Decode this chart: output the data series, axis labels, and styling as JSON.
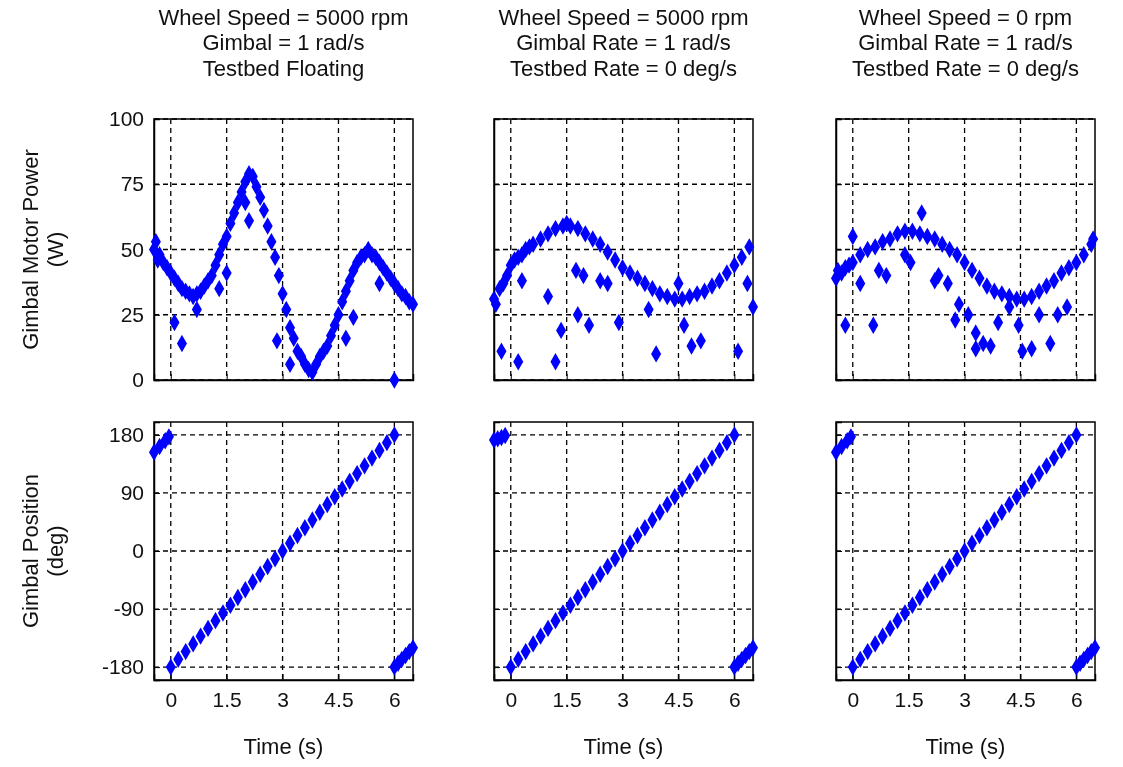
{
  "chart_data": [
    {
      "type": "scatter",
      "title": "Wheel Speed = 5000 rpm\nGimbal = 1 rad/s\nTestbed Floating",
      "ylabel": "Gimbal Motor Power\n(W)",
      "xlim": [
        -0.45,
        6.5
      ],
      "xticks": [
        0,
        1.5,
        3,
        4.5,
        6
      ],
      "ylim": [
        0,
        100
      ],
      "yticks": [
        0,
        25,
        50,
        75,
        100
      ],
      "grid": true,
      "marker": "diamond",
      "tick_labels": "y",
      "color": "#0000ff",
      "x": [
        -0.45,
        -0.4,
        -0.35,
        -0.3,
        -0.2,
        -0.1,
        0,
        0.1,
        0.2,
        0.3,
        0.4,
        0.5,
        0.6,
        0.7,
        0.8,
        0.9,
        1.0,
        1.1,
        1.2,
        1.3,
        1.4,
        1.5,
        1.6,
        1.7,
        1.8,
        1.9,
        2.0,
        2.1,
        2.2,
        2.3,
        2.4,
        2.5,
        2.6,
        2.7,
        2.8,
        2.9,
        3.0,
        3.1,
        3.2,
        3.3,
        3.4,
        3.5,
        3.6,
        3.7,
        3.8,
        3.9,
        4.0,
        4.1,
        4.2,
        4.3,
        4.4,
        4.5,
        4.6,
        4.7,
        4.8,
        4.9,
        5.0,
        5.1,
        5.2,
        5.3,
        5.4,
        5.5,
        5.6,
        5.7,
        5.8,
        5.9,
        6.0,
        6.1,
        6.2,
        6.3,
        6.4,
        6.5,
        0.1,
        0.3,
        0.7,
        1.5,
        2.1,
        2.85,
        3.2,
        4.9,
        5.6,
        4.7,
        6.0,
        2.0,
        1.3
      ],
      "values": [
        50,
        53,
        46,
        48,
        45,
        43,
        41,
        39,
        37,
        35,
        34,
        33,
        32,
        33,
        34,
        36,
        38,
        40,
        44,
        48,
        52,
        55,
        60,
        64,
        68,
        72,
        76,
        79,
        78,
        74,
        70,
        65,
        59,
        53,
        47,
        40,
        33,
        27,
        20,
        16,
        11,
        9,
        6,
        4,
        3,
        6,
        9,
        11,
        13,
        17,
        21,
        25,
        30,
        34,
        38,
        42,
        45,
        47,
        48,
        50,
        48,
        47,
        45,
        43,
        41,
        39,
        37,
        35,
        33,
        32,
        30,
        29,
        22,
        14,
        27,
        41,
        61,
        15,
        6,
        24,
        37,
        16,
        0,
        68,
        35
      ]
    },
    {
      "type": "scatter",
      "title": "Wheel Speed = 5000 rpm\nGimbal Rate = 1 rad/s\nTestbed Rate = 0 deg/s",
      "xlim": [
        -0.45,
        6.5
      ],
      "xticks": [
        0,
        1.5,
        3,
        4.5,
        6
      ],
      "ylim": [
        0,
        100
      ],
      "yticks": [
        0,
        25,
        50,
        75,
        100
      ],
      "grid": true,
      "marker": "diamond",
      "tick_labels": false,
      "color": "#0000ff",
      "x": [
        -0.45,
        -0.4,
        -0.3,
        -0.2,
        -0.1,
        0,
        0.1,
        0.2,
        0.3,
        0.4,
        0.5,
        0.6,
        0.8,
        1.0,
        1.2,
        1.4,
        1.5,
        1.6,
        1.8,
        2.0,
        2.2,
        2.4,
        2.6,
        2.8,
        3.0,
        3.2,
        3.4,
        3.6,
        3.8,
        4.0,
        4.2,
        4.4,
        4.6,
        4.8,
        5.0,
        5.2,
        5.4,
        5.6,
        5.8,
        6.0,
        6.2,
        6.4,
        -0.25,
        0.2,
        1.2,
        1.35,
        1.0,
        1.8,
        2.1,
        1.95,
        2.6,
        2.9,
        3.7,
        3.9,
        4.5,
        4.65,
        4.85,
        5.1,
        6.1,
        6.35,
        6.5,
        2.4,
        1.75,
        0.3
      ],
      "values": [
        31,
        29,
        35,
        37,
        40,
        44,
        46,
        47,
        48,
        50,
        51,
        52,
        54,
        56,
        58,
        59,
        60,
        59,
        58,
        56,
        54,
        52,
        49,
        46,
        43,
        41,
        39,
        37,
        35,
        33,
        32,
        31,
        31,
        32,
        33,
        34,
        36,
        38,
        41,
        44,
        47,
        51,
        11,
        7,
        7,
        19,
        32,
        25,
        21,
        40,
        37,
        22,
        27,
        10,
        37,
        21,
        13,
        15,
        11,
        37,
        28,
        38,
        42,
        38
      ]
    },
    {
      "type": "scatter",
      "title": "Wheel Speed = 0 rpm\nGimbal Rate = 1 rad/s\nTestbed Rate = 0 deg/s",
      "xlim": [
        -0.45,
        6.5
      ],
      "xticks": [
        0,
        1.5,
        3,
        4.5,
        6
      ],
      "ylim": [
        0,
        100
      ],
      "yticks": [
        0,
        25,
        50,
        75,
        100
      ],
      "grid": true,
      "marker": "diamond",
      "tick_labels": false,
      "color": "#0000ff",
      "x": [
        -0.45,
        -0.4,
        -0.3,
        -0.2,
        -0.1,
        0,
        0.2,
        0.4,
        0.6,
        0.8,
        1.0,
        1.2,
        1.4,
        1.6,
        1.8,
        2.0,
        2.2,
        2.4,
        2.6,
        2.8,
        3.0,
        3.2,
        3.4,
        3.6,
        3.8,
        4.0,
        4.2,
        4.4,
        4.6,
        4.8,
        5.0,
        5.2,
        5.4,
        5.6,
        5.8,
        6.0,
        6.2,
        6.4,
        6.45,
        -0.2,
        0.0,
        0.2,
        0.55,
        0.7,
        0.9,
        1.85,
        1.4,
        1.55,
        2.2,
        2.3,
        2.55,
        2.75,
        2.85,
        3.1,
        3.3,
        3.5,
        3.7,
        3.9,
        4.45,
        4.55,
        4.8,
        5.0,
        5.3,
        5.5,
        5.75,
        4.2,
        3.3
      ],
      "values": [
        39,
        42,
        41,
        43,
        44,
        45,
        48,
        50,
        51,
        53,
        54,
        56,
        57,
        57,
        56,
        55,
        54,
        52,
        50,
        48,
        45,
        42,
        39,
        36,
        34,
        33,
        32,
        31,
        31,
        32,
        34,
        36,
        38,
        41,
        43,
        45,
        48,
        52,
        54,
        21,
        55,
        37,
        21,
        42,
        40,
        64,
        48,
        45,
        38,
        40,
        37,
        23,
        29,
        25,
        18,
        14,
        13,
        22,
        21,
        11,
        12,
        25,
        14,
        25,
        28,
        28,
        12
      ]
    },
    {
      "type": "scatter",
      "ylabel": "Gimbal Position\n(deg)",
      "xlabel": "Time (s)",
      "xlim": [
        -0.45,
        6.5
      ],
      "xticks": [
        0,
        1.5,
        3,
        4.5,
        6
      ],
      "ylim": [
        -200,
        200
      ],
      "yticks": [
        -180,
        -90,
        0,
        90,
        180
      ],
      "grid": true,
      "marker": "diamond",
      "color": "#0000ff",
      "x": [
        -0.45,
        -0.3,
        -0.15,
        -0.05,
        0,
        0.2,
        0.4,
        0.6,
        0.8,
        1.0,
        1.2,
        1.4,
        1.6,
        1.8,
        2.0,
        2.2,
        2.4,
        2.6,
        2.8,
        3.0,
        3.2,
        3.4,
        3.6,
        3.8,
        4.0,
        4.2,
        4.4,
        4.6,
        4.8,
        5.0,
        5.2,
        5.4,
        5.6,
        5.8,
        6.0,
        6.0,
        6.1,
        6.2,
        6.3,
        6.4,
        6.5
      ],
      "values": [
        153,
        162,
        171,
        177,
        -180,
        -168,
        -156,
        -144,
        -132,
        -120,
        -108,
        -96,
        -84,
        -72,
        -60,
        -48,
        -36,
        -24,
        -12,
        0,
        12,
        24,
        36,
        48,
        60,
        72,
        84,
        96,
        108,
        120,
        132,
        144,
        156,
        168,
        180,
        -180,
        -174,
        -168,
        -162,
        -156,
        -150
      ]
    },
    {
      "type": "scatter",
      "xlabel": "Time (s)",
      "xlim": [
        -0.45,
        6.5
      ],
      "xticks": [
        0,
        1.5,
        3,
        4.5,
        6
      ],
      "ylim": [
        -200,
        200
      ],
      "yticks": [
        -180,
        -90,
        0,
        90,
        180
      ],
      "grid": true,
      "marker": "diamond",
      "tick_labels": "x",
      "color": "#0000ff",
      "x": [
        -0.45,
        -0.35,
        -0.25,
        -0.15,
        0,
        0.2,
        0.4,
        0.6,
        0.8,
        1.0,
        1.2,
        1.4,
        1.6,
        1.8,
        2.0,
        2.2,
        2.4,
        2.6,
        2.8,
        3.0,
        3.2,
        3.4,
        3.6,
        3.8,
        4.0,
        4.2,
        4.4,
        4.6,
        4.8,
        5.0,
        5.2,
        5.4,
        5.6,
        5.8,
        6.0,
        6.0,
        6.1,
        6.2,
        6.3,
        6.4,
        6.5
      ],
      "values": [
        172,
        174,
        176,
        179,
        -180,
        -168,
        -156,
        -144,
        -132,
        -120,
        -108,
        -96,
        -84,
        -72,
        -60,
        -48,
        -36,
        -24,
        -12,
        0,
        12,
        24,
        36,
        48,
        60,
        72,
        84,
        96,
        108,
        120,
        132,
        144,
        156,
        168,
        180,
        -180,
        -174,
        -168,
        -162,
        -156,
        -150
      ]
    },
    {
      "type": "scatter",
      "xlabel": "Time (s)",
      "xlim": [
        -0.45,
        6.5
      ],
      "xticks": [
        0,
        1.5,
        3,
        4.5,
        6
      ],
      "ylim": [
        -200,
        200
      ],
      "yticks": [
        -180,
        -90,
        0,
        90,
        180
      ],
      "grid": true,
      "marker": "diamond",
      "tick_labels": "x",
      "color": "#0000ff",
      "x": [
        -0.45,
        -0.3,
        -0.15,
        -0.05,
        0,
        0.2,
        0.4,
        0.6,
        0.8,
        1.0,
        1.2,
        1.4,
        1.6,
        1.8,
        2.0,
        2.2,
        2.4,
        2.6,
        2.8,
        3.0,
        3.2,
        3.4,
        3.6,
        3.8,
        4.0,
        4.2,
        4.4,
        4.6,
        4.8,
        5.0,
        5.2,
        5.4,
        5.6,
        5.8,
        6.0,
        6.0,
        6.1,
        6.2,
        6.3,
        6.4,
        6.5
      ],
      "values": [
        153,
        162,
        171,
        177,
        -180,
        -168,
        -156,
        -144,
        -132,
        -120,
        -108,
        -96,
        -84,
        -72,
        -60,
        -48,
        -36,
        -24,
        -12,
        0,
        12,
        24,
        36,
        48,
        60,
        72,
        84,
        96,
        108,
        120,
        132,
        144,
        156,
        168,
        180,
        -180,
        -174,
        -168,
        -162,
        -156,
        -150
      ]
    }
  ]
}
